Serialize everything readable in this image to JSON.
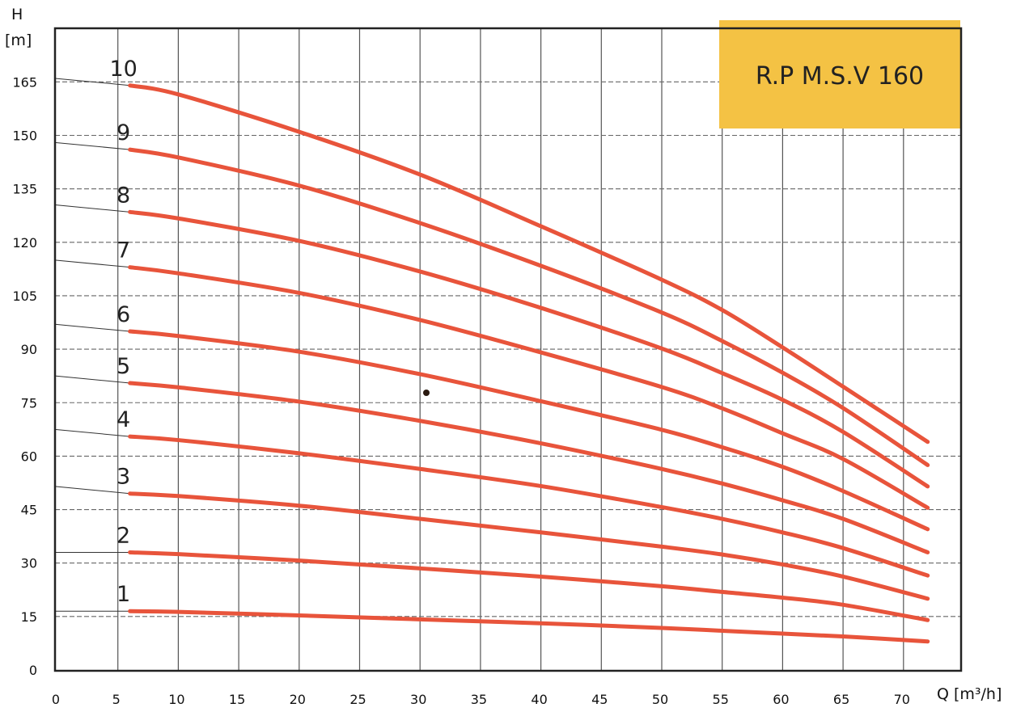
{
  "chart_data": {
    "type": "line",
    "title": "R.P M.S.V 160",
    "xlabel": "Q [m³/h]",
    "ylabel_top": "H",
    "ylabel_unit": "[m]",
    "xlim": [
      0,
      75
    ],
    "ylim": [
      0,
      180
    ],
    "x_ticks": [
      0,
      5,
      10,
      15,
      20,
      25,
      30,
      35,
      40,
      45,
      50,
      55,
      60,
      65,
      70
    ],
    "y_ticks": [
      0,
      15,
      30,
      45,
      60,
      75,
      90,
      105,
      120,
      135,
      150,
      165
    ],
    "grid": true,
    "title_box_color": "#f4c244",
    "curve_color": "#e8543b",
    "x": [
      6,
      10,
      20,
      30,
      40,
      50,
      55,
      60,
      65,
      72
    ],
    "series": [
      {
        "name": "1",
        "values": [
          16.5,
          16.3,
          15.3,
          14.2,
          13.1,
          11.8,
          11.0,
          10.2,
          9.4,
          8
        ]
      },
      {
        "name": "2",
        "values": [
          33,
          32.5,
          30.7,
          28.5,
          26.2,
          23.5,
          21.9,
          20.3,
          18.3,
          14
        ]
      },
      {
        "name": "3",
        "values": [
          49.5,
          48.8,
          46.1,
          42.4,
          38.6,
          34.6,
          32.4,
          29.6,
          26.2,
          20
        ]
      },
      {
        "name": "4",
        "values": [
          65.5,
          64.5,
          60.8,
          56.4,
          51.6,
          45.7,
          42.4,
          38.6,
          34.2,
          26.5
        ]
      },
      {
        "name": "5",
        "values": [
          80.5,
          79.3,
          75.3,
          69.9,
          63.6,
          56.4,
          52.3,
          47.6,
          42.4,
          33
        ]
      },
      {
        "name": "6",
        "values": [
          95,
          93.7,
          89.3,
          83,
          75.4,
          67.4,
          62.5,
          57,
          50.2,
          39.5
        ]
      },
      {
        "name": "7",
        "values": [
          113,
          111.3,
          105.8,
          98.2,
          89.1,
          79.4,
          73.4,
          66.4,
          59.2,
          45.5
        ]
      },
      {
        "name": "8",
        "values": [
          128.5,
          126.7,
          120.4,
          111.8,
          101.6,
          90.2,
          83.3,
          75.8,
          66.8,
          51.5
        ]
      },
      {
        "name": "9",
        "values": [
          146,
          143.8,
          135.9,
          125.4,
          113.4,
          100.3,
          92.3,
          83.4,
          73.5,
          57.5
        ]
      },
      {
        "name": "10",
        "values": [
          164,
          161.5,
          151,
          139,
          124.5,
          109.5,
          101,
          90.5,
          79.5,
          64
        ]
      }
    ]
  }
}
